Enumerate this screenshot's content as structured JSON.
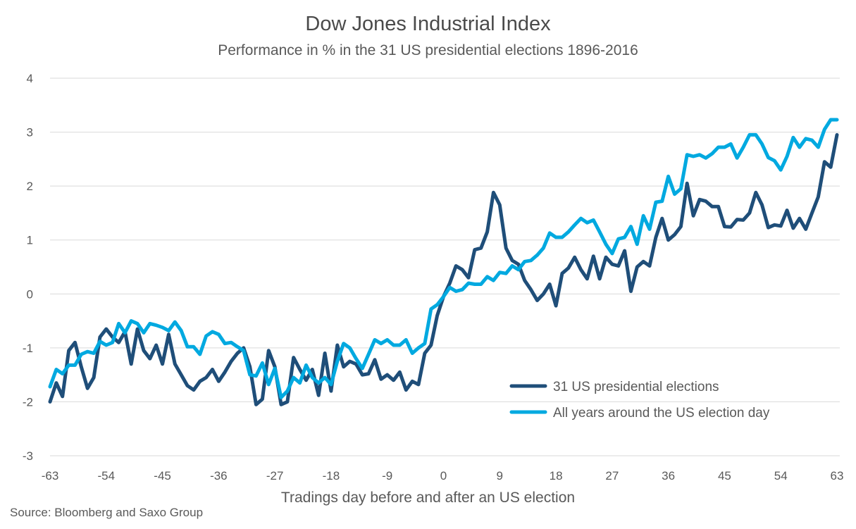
{
  "chart_data": {
    "type": "line",
    "title": "Dow Jones Industrial Index",
    "subtitle": "Performance in % in the 31 US presidential elections 1896-2016",
    "xlabel": "Tradings day before and after an US election",
    "ylabel": "",
    "xlim": [
      -63,
      63
    ],
    "ylim": [
      -3,
      4
    ],
    "x_ticks": [
      "-63",
      "-54",
      "-45",
      "-36",
      "-27",
      "-18",
      "-9",
      "0",
      "9",
      "18",
      "27",
      "36",
      "45",
      "54",
      "63"
    ],
    "y_ticks": [
      "4",
      "3",
      "2",
      "1",
      "0",
      "-1",
      "-2",
      "-3"
    ],
    "grid": "horizontal",
    "legend_position": "bottom-right",
    "series": [
      {
        "name": "31 US presidential elections",
        "color": "#1f4e79",
        "points": [
          [
            -63,
            -2.0
          ],
          [
            -62,
            -1.65
          ],
          [
            -61,
            -1.9
          ],
          [
            -60,
            -1.05
          ],
          [
            -59,
            -0.9
          ],
          [
            -58,
            -1.35
          ],
          [
            -57,
            -1.75
          ],
          [
            -56,
            -1.55
          ],
          [
            -55,
            -0.8
          ],
          [
            -54,
            -0.65
          ],
          [
            -53,
            -0.8
          ],
          [
            -52,
            -0.9
          ],
          [
            -51,
            -0.7
          ],
          [
            -50,
            -1.3
          ],
          [
            -49,
            -0.65
          ],
          [
            -48,
            -1.05
          ],
          [
            -47,
            -1.2
          ],
          [
            -46,
            -0.95
          ],
          [
            -45,
            -1.3
          ],
          [
            -44,
            -0.75
          ],
          [
            -43,
            -1.3
          ],
          [
            -42,
            -1.5
          ],
          [
            -41,
            -1.7
          ],
          [
            -40,
            -1.78
          ],
          [
            -39,
            -1.62
          ],
          [
            -38,
            -1.55
          ],
          [
            -37,
            -1.4
          ],
          [
            -36,
            -1.62
          ],
          [
            -35,
            -1.45
          ],
          [
            -34,
            -1.25
          ],
          [
            -33,
            -1.1
          ],
          [
            -32,
            -1.0
          ],
          [
            -31,
            -1.35
          ],
          [
            -30,
            -2.05
          ],
          [
            -29,
            -1.95
          ],
          [
            -28,
            -1.05
          ],
          [
            -27,
            -1.35
          ],
          [
            -26,
            -2.05
          ],
          [
            -25,
            -2.0
          ],
          [
            -24,
            -1.18
          ],
          [
            -23,
            -1.4
          ],
          [
            -22,
            -1.6
          ],
          [
            -21,
            -1.4
          ],
          [
            -20,
            -1.88
          ],
          [
            -19,
            -1.1
          ],
          [
            -18,
            -1.8
          ],
          [
            -17,
            -0.95
          ],
          [
            -16,
            -1.35
          ],
          [
            -15,
            -1.25
          ],
          [
            -14,
            -1.3
          ],
          [
            -13,
            -1.5
          ],
          [
            -12,
            -1.48
          ],
          [
            -11,
            -1.22
          ],
          [
            -10,
            -1.58
          ],
          [
            -9,
            -1.5
          ],
          [
            -8,
            -1.6
          ],
          [
            -7,
            -1.45
          ],
          [
            -6,
            -1.78
          ],
          [
            -5,
            -1.62
          ],
          [
            -4,
            -1.68
          ],
          [
            -3,
            -1.1
          ],
          [
            -2,
            -0.95
          ],
          [
            -1,
            -0.4
          ],
          [
            0,
            -0.05
          ],
          [
            1,
            0.2
          ],
          [
            2,
            0.52
          ],
          [
            3,
            0.45
          ],
          [
            4,
            0.3
          ],
          [
            5,
            0.82
          ],
          [
            6,
            0.85
          ],
          [
            7,
            1.15
          ],
          [
            8,
            1.88
          ],
          [
            9,
            1.65
          ],
          [
            10,
            0.85
          ],
          [
            11,
            0.62
          ],
          [
            12,
            0.55
          ],
          [
            13,
            0.25
          ],
          [
            14,
            0.08
          ],
          [
            15,
            -0.12
          ],
          [
            16,
            0.0
          ],
          [
            17,
            0.18
          ],
          [
            18,
            -0.22
          ],
          [
            19,
            0.38
          ],
          [
            20,
            0.48
          ],
          [
            21,
            0.68
          ],
          [
            22,
            0.45
          ],
          [
            23,
            0.28
          ],
          [
            24,
            0.7
          ],
          [
            25,
            0.28
          ],
          [
            26,
            0.68
          ],
          [
            27,
            0.55
          ],
          [
            28,
            0.52
          ],
          [
            29,
            0.8
          ],
          [
            30,
            0.05
          ],
          [
            31,
            0.5
          ],
          [
            32,
            0.6
          ],
          [
            33,
            0.52
          ],
          [
            34,
            1.05
          ],
          [
            35,
            1.4
          ],
          [
            36,
            1.0
          ],
          [
            37,
            1.1
          ],
          [
            38,
            1.25
          ],
          [
            39,
            2.05
          ],
          [
            40,
            1.45
          ],
          [
            41,
            1.75
          ],
          [
            42,
            1.72
          ],
          [
            43,
            1.62
          ],
          [
            44,
            1.62
          ],
          [
            45,
            1.25
          ],
          [
            46,
            1.24
          ],
          [
            47,
            1.38
          ],
          [
            48,
            1.37
          ],
          [
            49,
            1.5
          ],
          [
            50,
            1.88
          ],
          [
            51,
            1.65
          ],
          [
            52,
            1.23
          ],
          [
            53,
            1.28
          ],
          [
            54,
            1.26
          ],
          [
            55,
            1.55
          ],
          [
            56,
            1.22
          ],
          [
            57,
            1.4
          ],
          [
            58,
            1.2
          ],
          [
            59,
            1.5
          ],
          [
            60,
            1.8
          ],
          [
            61,
            2.45
          ],
          [
            62,
            2.35
          ],
          [
            63,
            2.95
          ]
        ]
      },
      {
        "name": "All years around the US election day",
        "color": "#00a9e0",
        "points": [
          [
            -63,
            -1.72
          ],
          [
            -62,
            -1.4
          ],
          [
            -61,
            -1.48
          ],
          [
            -60,
            -1.32
          ],
          [
            -59,
            -1.32
          ],
          [
            -58,
            -1.12
          ],
          [
            -57,
            -1.07
          ],
          [
            -56,
            -1.1
          ],
          [
            -55,
            -0.88
          ],
          [
            -54,
            -0.95
          ],
          [
            -53,
            -0.9
          ],
          [
            -52,
            -0.55
          ],
          [
            -51,
            -0.72
          ],
          [
            -50,
            -0.5
          ],
          [
            -49,
            -0.55
          ],
          [
            -48,
            -0.72
          ],
          [
            -47,
            -0.55
          ],
          [
            -46,
            -0.58
          ],
          [
            -45,
            -0.62
          ],
          [
            -44,
            -0.68
          ],
          [
            -43,
            -0.52
          ],
          [
            -42,
            -0.68
          ],
          [
            -41,
            -0.98
          ],
          [
            -40,
            -0.98
          ],
          [
            -39,
            -1.12
          ],
          [
            -38,
            -0.78
          ],
          [
            -37,
            -0.7
          ],
          [
            -36,
            -0.75
          ],
          [
            -35,
            -0.92
          ],
          [
            -34,
            -0.9
          ],
          [
            -33,
            -0.98
          ],
          [
            -32,
            -1.05
          ],
          [
            -31,
            -1.5
          ],
          [
            -30,
            -1.52
          ],
          [
            -29,
            -1.28
          ],
          [
            -28,
            -1.68
          ],
          [
            -27,
            -1.38
          ],
          [
            -26,
            -1.92
          ],
          [
            -25,
            -1.8
          ],
          [
            -24,
            -1.55
          ],
          [
            -23,
            -1.65
          ],
          [
            -22,
            -1.32
          ],
          [
            -21,
            -1.55
          ],
          [
            -20,
            -1.65
          ],
          [
            -19,
            -1.55
          ],
          [
            -18,
            -1.68
          ],
          [
            -17,
            -1.25
          ],
          [
            -16,
            -0.92
          ],
          [
            -15,
            -1.0
          ],
          [
            -14,
            -1.2
          ],
          [
            -13,
            -1.38
          ],
          [
            -12,
            -1.12
          ],
          [
            -11,
            -0.85
          ],
          [
            -10,
            -0.92
          ],
          [
            -9,
            -0.85
          ],
          [
            -8,
            -0.95
          ],
          [
            -7,
            -0.95
          ],
          [
            -6,
            -0.85
          ],
          [
            -5,
            -1.1
          ],
          [
            -4,
            -1.0
          ],
          [
            -3,
            -0.92
          ],
          [
            -2,
            -0.28
          ],
          [
            -1,
            -0.2
          ],
          [
            0,
            -0.05
          ],
          [
            1,
            0.12
          ],
          [
            2,
            0.05
          ],
          [
            3,
            0.08
          ],
          [
            4,
            0.2
          ],
          [
            5,
            0.18
          ],
          [
            6,
            0.18
          ],
          [
            7,
            0.32
          ],
          [
            8,
            0.25
          ],
          [
            9,
            0.4
          ],
          [
            10,
            0.38
          ],
          [
            11,
            0.52
          ],
          [
            12,
            0.45
          ],
          [
            13,
            0.6
          ],
          [
            14,
            0.62
          ],
          [
            15,
            0.72
          ],
          [
            16,
            0.85
          ],
          [
            17,
            1.13
          ],
          [
            18,
            1.05
          ],
          [
            19,
            1.05
          ],
          [
            20,
            1.15
          ],
          [
            21,
            1.28
          ],
          [
            22,
            1.4
          ],
          [
            23,
            1.32
          ],
          [
            24,
            1.37
          ],
          [
            25,
            1.15
          ],
          [
            26,
            0.92
          ],
          [
            27,
            0.75
          ],
          [
            28,
            1.02
          ],
          [
            29,
            1.05
          ],
          [
            30,
            1.25
          ],
          [
            31,
            0.92
          ],
          [
            32,
            1.45
          ],
          [
            33,
            1.2
          ],
          [
            34,
            1.7
          ],
          [
            35,
            1.72
          ],
          [
            36,
            2.18
          ],
          [
            37,
            1.85
          ],
          [
            38,
            1.95
          ],
          [
            39,
            2.58
          ],
          [
            40,
            2.55
          ],
          [
            41,
            2.58
          ],
          [
            42,
            2.52
          ],
          [
            43,
            2.6
          ],
          [
            44,
            2.72
          ],
          [
            45,
            2.72
          ],
          [
            46,
            2.78
          ],
          [
            47,
            2.52
          ],
          [
            48,
            2.72
          ],
          [
            49,
            2.95
          ],
          [
            50,
            2.95
          ],
          [
            51,
            2.78
          ],
          [
            52,
            2.53
          ],
          [
            53,
            2.47
          ],
          [
            54,
            2.3
          ],
          [
            55,
            2.55
          ],
          [
            56,
            2.9
          ],
          [
            57,
            2.72
          ],
          [
            58,
            2.88
          ],
          [
            59,
            2.85
          ],
          [
            60,
            2.72
          ],
          [
            61,
            3.05
          ],
          [
            62,
            3.23
          ],
          [
            63,
            3.23
          ]
        ]
      }
    ]
  },
  "source": "Source: Bloomberg and Saxo Group"
}
